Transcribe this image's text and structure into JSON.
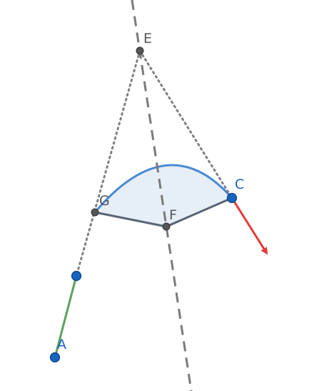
{
  "points": {
    "A": {
      "label": "A",
      "color": "#1565C0"
    },
    "C": {
      "label": "C",
      "color": "#1565C0"
    },
    "E": {
      "label": "E",
      "color": "#555555"
    },
    "F": {
      "label": "F",
      "color": "#555555"
    },
    "G": {
      "label": "G",
      "color": "#555555"
    }
  },
  "colors": {
    "sector_fill": "#E6EEF8",
    "arc": "#4A8AD4",
    "chord": "#5A6575",
    "vector": "#E53935",
    "segment_green": "#5BA15B",
    "dotted": "#808080",
    "dashed": "#7A7A7A",
    "point_blue": "#1565C0",
    "point_dark": "#555555"
  }
}
